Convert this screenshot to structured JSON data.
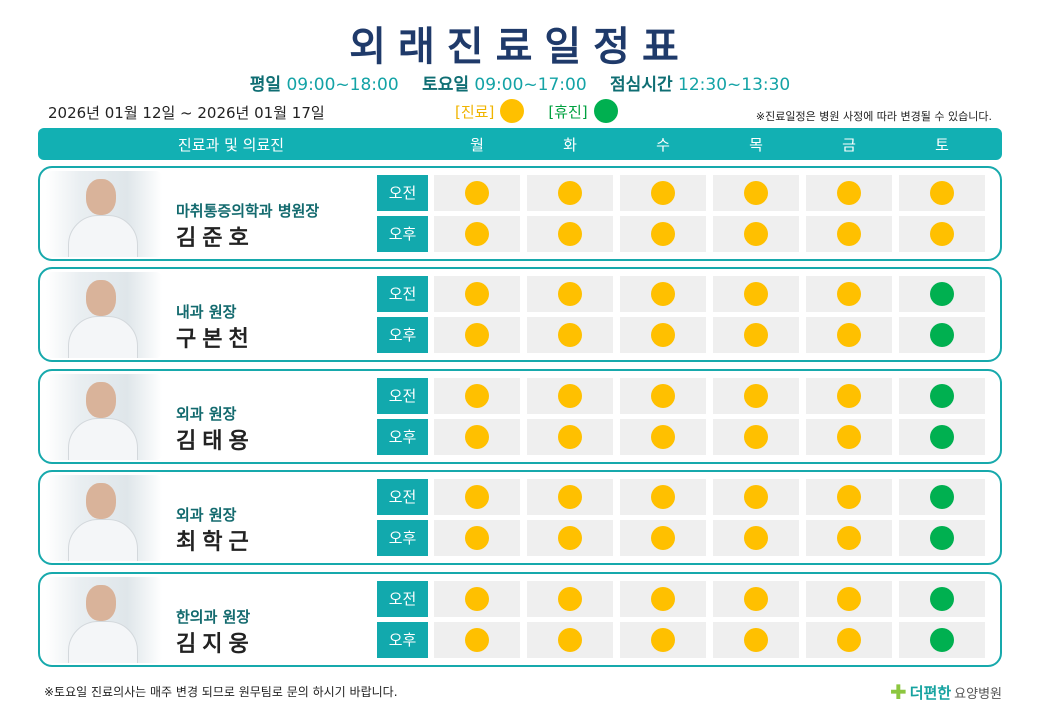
{
  "title": "외래진료일정표",
  "hours": [
    {
      "label": "평일",
      "time": "09:00~18:00"
    },
    {
      "label": "토요일",
      "time": "09:00~17:00"
    },
    {
      "label": "점심시간",
      "time": "12:30~13:30"
    }
  ],
  "period": "2026년 01월 12일 ~ 2026년 01월 17일",
  "legend": {
    "open_label": "[진료]",
    "closed_label": "[휴진]",
    "open_color": "#ffc000",
    "closed_color": "#00b050"
  },
  "notice": "※진료일정은 병원 사정에 따라 변경될 수 있습니다.",
  "table_header": {
    "doctor_col": "진료과 및 의료진",
    "days": [
      "월",
      "화",
      "수",
      "목",
      "금",
      "토"
    ]
  },
  "sessions": [
    "오전",
    "오후"
  ],
  "doctors": [
    {
      "dept": "마취통증의학과 병원장",
      "name": "김준호",
      "schedule": {
        "am": [
          "open",
          "open",
          "open",
          "open",
          "open",
          "open"
        ],
        "pm": [
          "open",
          "open",
          "open",
          "open",
          "open",
          "open"
        ]
      }
    },
    {
      "dept": "내과 원장",
      "name": "구본천",
      "schedule": {
        "am": [
          "open",
          "open",
          "open",
          "open",
          "open",
          "closed"
        ],
        "pm": [
          "open",
          "open",
          "open",
          "open",
          "open",
          "closed"
        ]
      }
    },
    {
      "dept": "외과 원장",
      "name": "김태용",
      "schedule": {
        "am": [
          "open",
          "open",
          "open",
          "open",
          "open",
          "closed"
        ],
        "pm": [
          "open",
          "open",
          "open",
          "open",
          "open",
          "closed"
        ]
      }
    },
    {
      "dept": "외과 원장",
      "name": "최학근",
      "schedule": {
        "am": [
          "open",
          "open",
          "open",
          "open",
          "open",
          "closed"
        ],
        "pm": [
          "open",
          "open",
          "open",
          "open",
          "open",
          "closed"
        ]
      }
    },
    {
      "dept": "한의과 원장",
      "name": "김지웅",
      "schedule": {
        "am": [
          "open",
          "open",
          "open",
          "open",
          "open",
          "closed"
        ],
        "pm": [
          "open",
          "open",
          "open",
          "open",
          "open",
          "closed"
        ]
      }
    }
  ],
  "footer_note": "※토요일 진료의사는 매주 변경 되므로 원무팀로 문의 하시기 바랍니다.",
  "logo": {
    "brand": "더편한",
    "suffix": "요양병원"
  }
}
